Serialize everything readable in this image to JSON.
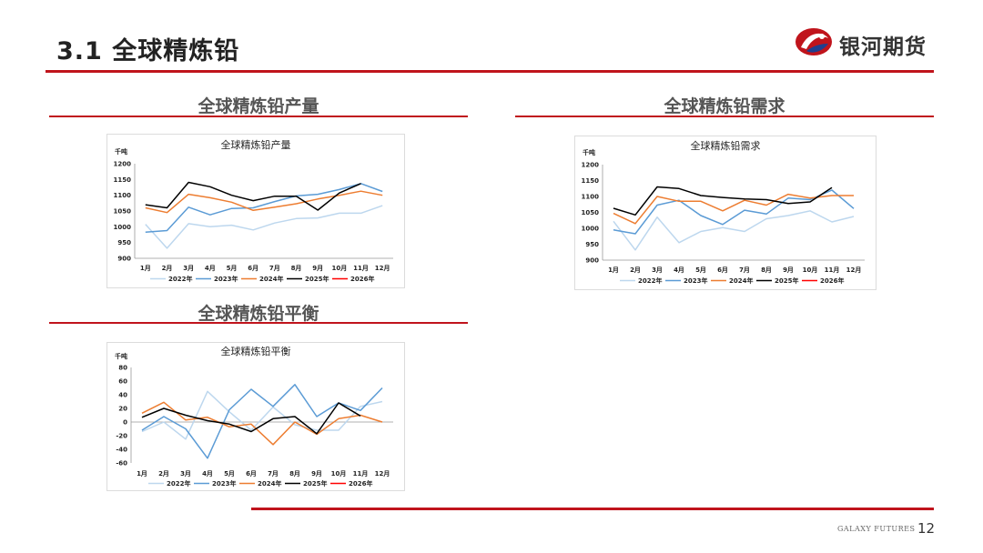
{
  "slide": {
    "title": "3.1  全球精炼铅",
    "brand_name": "银河期货",
    "footer_brand": "GALAXY FUTURES",
    "page_number": "12"
  },
  "sections": {
    "production": "全球精炼铅产量",
    "demand": "全球精炼铅需求",
    "balance": "全球精炼铅平衡"
  },
  "colors": {
    "accent": "#c0141c",
    "2022": "#bdd7ee",
    "2023": "#5b9bd5",
    "2024": "#ed7d31",
    "2025": "#000000",
    "2026": "#ff0000"
  },
  "chart_data": [
    {
      "id": "production",
      "type": "line",
      "title": "全球精炼铅产量",
      "unit": "千吨",
      "categories": [
        "1月",
        "2月",
        "3月",
        "4月",
        "5月",
        "6月",
        "7月",
        "8月",
        "9月",
        "10月",
        "11月",
        "12月"
      ],
      "ylim": [
        900,
        1200
      ],
      "yticks": [
        900,
        950,
        1000,
        1050,
        1100,
        1150,
        1200
      ],
      "legend_position": "bottom",
      "series": [
        {
          "name": "2022年",
          "values": [
            1008,
            932,
            1010,
            1000,
            1005,
            990,
            1012,
            1026,
            1028,
            1043,
            1043,
            1067
          ]
        },
        {
          "name": "2023年",
          "values": [
            983,
            988,
            1062,
            1038,
            1058,
            1060,
            1080,
            1098,
            1103,
            1118,
            1137,
            1112
          ]
        },
        {
          "name": "2024年",
          "values": [
            1060,
            1045,
            1103,
            1092,
            1078,
            1052,
            1062,
            1073,
            1088,
            1100,
            1113,
            1100
          ]
        },
        {
          "name": "2025年",
          "values": [
            1070,
            1060,
            1141,
            1127,
            1100,
            1083,
            1097,
            1097,
            1053,
            1107,
            1137,
            null
          ]
        },
        {
          "name": "2026年",
          "values": [
            null,
            null,
            null,
            null,
            null,
            null,
            null,
            null,
            null,
            null,
            null,
            null
          ]
        }
      ]
    },
    {
      "id": "demand",
      "type": "line",
      "title": "全球精炼铅需求",
      "unit": "千吨",
      "categories": [
        "1月",
        "2月",
        "3月",
        "4月",
        "5月",
        "6月",
        "7月",
        "8月",
        "9月",
        "10月",
        "11月",
        "12月"
      ],
      "ylim": [
        900,
        1200
      ],
      "yticks": [
        900,
        950,
        1000,
        1050,
        1100,
        1150,
        1200
      ],
      "legend_position": "bottom",
      "series": [
        {
          "name": "2022年",
          "values": [
            1022,
            932,
            1035,
            955,
            990,
            1002,
            990,
            1030,
            1040,
            1055,
            1020,
            1037
          ]
        },
        {
          "name": "2023年",
          "values": [
            995,
            983,
            1073,
            1088,
            1040,
            1012,
            1057,
            1045,
            1095,
            1090,
            1120,
            1062
          ]
        },
        {
          "name": "2024年",
          "values": [
            1047,
            1015,
            1100,
            1085,
            1085,
            1055,
            1088,
            1073,
            1107,
            1095,
            1103,
            1103
          ]
        },
        {
          "name": "2025年",
          "values": [
            1063,
            1042,
            1130,
            1125,
            1103,
            1097,
            1092,
            1090,
            1078,
            1083,
            1128,
            null
          ]
        },
        {
          "name": "2026年",
          "values": [
            null,
            null,
            null,
            null,
            null,
            null,
            null,
            null,
            null,
            null,
            null,
            null
          ]
        }
      ]
    },
    {
      "id": "balance",
      "type": "line",
      "title": "全球精炼铅平衡",
      "unit": "千吨",
      "categories": [
        "1月",
        "2月",
        "3月",
        "4月",
        "5月",
        "6月",
        "7月",
        "8月",
        "9月",
        "10月",
        "11月",
        "12月"
      ],
      "ylim": [
        -60,
        80
      ],
      "yticks": [
        -60,
        -40,
        -20,
        0,
        20,
        40,
        60,
        80
      ],
      "legend_position": "bottom",
      "series": [
        {
          "name": "2022年",
          "values": [
            -14,
            0,
            -25,
            45,
            15,
            -12,
            22,
            -4,
            -12,
            -12,
            23,
            30
          ]
        },
        {
          "name": "2023年",
          "values": [
            -12,
            8,
            -10,
            -53,
            18,
            48,
            23,
            55,
            8,
            28,
            17,
            50
          ]
        },
        {
          "name": "2024年",
          "values": [
            13,
            29,
            3,
            7,
            -7,
            -3,
            -33,
            0,
            -18,
            5,
            10,
            0
          ]
        },
        {
          "name": "2025年",
          "values": [
            7,
            20,
            10,
            2,
            -3,
            -14,
            5,
            8,
            -17,
            28,
            9,
            null
          ]
        },
        {
          "name": "2026年",
          "values": [
            null,
            null,
            null,
            null,
            null,
            null,
            null,
            null,
            null,
            null,
            null,
            null
          ]
        }
      ]
    }
  ]
}
